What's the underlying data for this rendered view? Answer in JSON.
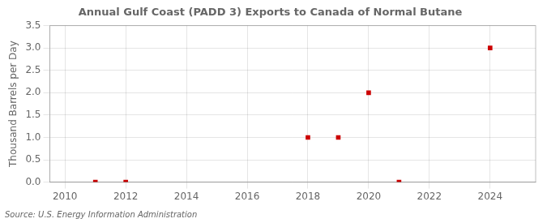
{
  "chart_data": {
    "type": "scatter",
    "title": "Annual Gulf Coast (PADD 3) Exports to Canada of Normal Butane",
    "ylabel": "Thousand Barrels per Day",
    "annotation": "Source: U.S. Energy Information Administration",
    "x": [
      2011,
      2012,
      2018,
      2019,
      2020,
      2021,
      2024
    ],
    "values": [
      0.0,
      0.0,
      1.0,
      1.0,
      2.0,
      0.0,
      3.0
    ],
    "color": "#cc0000",
    "marker": "square",
    "xlim": [
      2009.5,
      2025.5
    ],
    "ylim": [
      0.0,
      3.5
    ],
    "xticks": [
      2010,
      2012,
      2014,
      2016,
      2018,
      2020,
      2022,
      2024
    ],
    "yticks": [
      {
        "value": 0,
        "label": "0.0"
      },
      0.5,
      {
        "value": 1,
        "label": "1.0"
      },
      1.5,
      {
        "value": 2,
        "label": "2.0"
      },
      2.5,
      {
        "value": 3,
        "label": "3.0"
      },
      3.5
    ],
    "grid": true
  }
}
